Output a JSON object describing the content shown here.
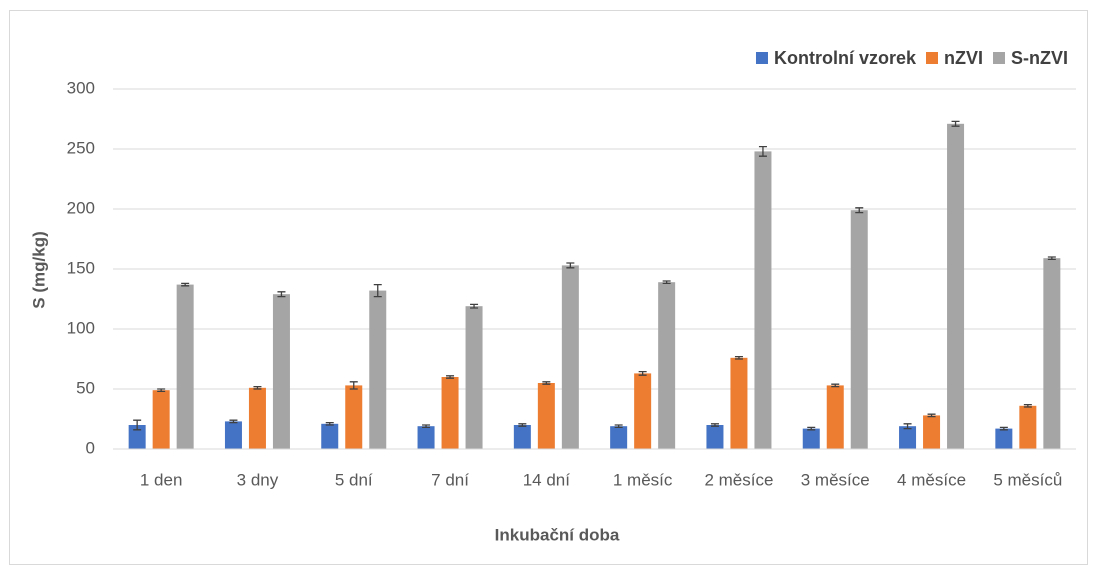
{
  "chart_data": {
    "type": "bar",
    "categories": [
      "1 den",
      "3 dny",
      "5 dní",
      "7 dní",
      "14 dní",
      "1 měsíc",
      "2 měsíce",
      "3 měsíce",
      "4 měsíce",
      "5 měsíců"
    ],
    "series": [
      {
        "name": "Kontrolní vzorek",
        "color": "#4472c4",
        "values": [
          20,
          23,
          21,
          19,
          20,
          19,
          20,
          17,
          19,
          17
        ],
        "errors": [
          4,
          1,
          1,
          1,
          1,
          1,
          1,
          1,
          2,
          1
        ]
      },
      {
        "name": "nZVI",
        "color": "#ed7d31",
        "values": [
          49,
          51,
          53,
          60,
          55,
          63,
          76,
          53,
          28,
          36
        ],
        "errors": [
          1,
          1,
          3,
          1,
          1,
          1.5,
          1,
          1,
          1,
          1
        ]
      },
      {
        "name": "S-nZVI",
        "color": "#a5a5a5",
        "values": [
          137,
          129,
          132,
          119,
          153,
          139,
          248,
          199,
          271,
          159
        ],
        "errors": [
          1,
          2,
          5,
          1.5,
          2,
          1,
          4,
          2,
          2,
          1
        ]
      }
    ],
    "x_label": "Inkubační doba",
    "y_label": "S (mg/kg)",
    "ylim": [
      0,
      300
    ],
    "yticks": [
      0,
      50,
      100,
      150,
      200,
      250,
      300
    ],
    "grid": true,
    "legend": "top-right"
  }
}
